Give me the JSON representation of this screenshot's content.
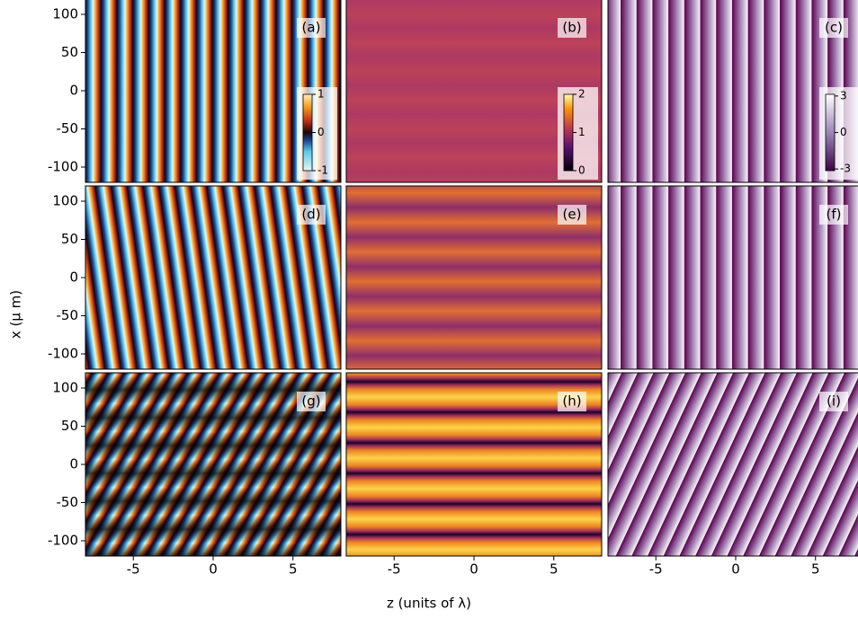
{
  "chart_data": {
    "type": "image-grid",
    "xlabel": "z (units of λ)",
    "ylabel": "x (μ m)",
    "xlim": [
      -8,
      8
    ],
    "ylim": [
      -120,
      120
    ],
    "xticks": [
      -5,
      0,
      5
    ],
    "yticks": [
      100,
      50,
      0,
      -50,
      -100
    ],
    "panels": [
      {
        "label": "(a)"
      },
      {
        "label": "(b)"
      },
      {
        "label": "(c)"
      },
      {
        "label": "(d)"
      },
      {
        "label": "(e)"
      },
      {
        "label": "(f)"
      },
      {
        "label": "(g)"
      },
      {
        "label": "(h)"
      },
      {
        "label": "(i)"
      }
    ],
    "colorbars": [
      {
        "lim": [
          -1,
          1
        ],
        "ticks": [
          -1,
          0,
          1
        ]
      },
      {
        "lim": [
          0,
          2
        ],
        "ticks": [
          0,
          1,
          2
        ]
      },
      {
        "lim": [
          -3.14,
          3.14
        ],
        "ticks": [
          -3,
          0,
          3
        ]
      }
    ]
  }
}
